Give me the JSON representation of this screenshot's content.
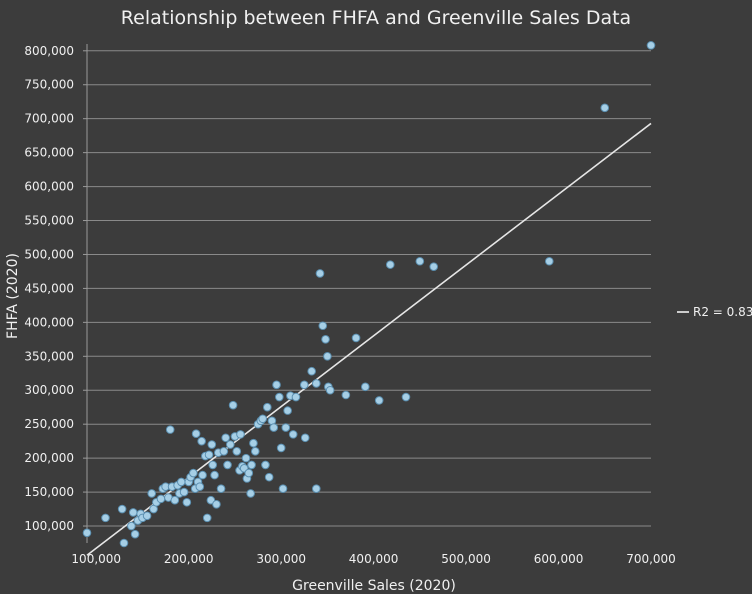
{
  "chart_data": {
    "type": "scatter",
    "title": "Relationship between FHFA and Greenville Sales Data",
    "xlabel": "Greenville Sales (2020)",
    "ylabel": "FHFA (2020)",
    "xlim": [
      90000,
      700000
    ],
    "ylim": [
      75000,
      810000
    ],
    "xticks": [
      100000,
      200000,
      300000,
      400000,
      500000,
      600000,
      700000
    ],
    "xtick_labels": [
      "100,000",
      "200,000",
      "300,000",
      "400,000",
      "500,000",
      "600,000",
      "700,000"
    ],
    "yticks": [
      100000,
      150000,
      200000,
      250000,
      300000,
      350000,
      400000,
      450000,
      500000,
      550000,
      600000,
      650000,
      700000,
      750000,
      800000
    ],
    "ytick_labels": [
      "100,000",
      "150,000",
      "200,000",
      "250,000",
      "300,000",
      "350,000",
      "400,000",
      "450,000",
      "500,000",
      "550,000",
      "600,000",
      "650,000",
      "700,000",
      "750,000",
      "800,000"
    ],
    "grid": true,
    "legend_position": "right",
    "colors": {
      "background": "#3c3c3c",
      "grid": "#8a8a8a",
      "point_fill": "#a6cfe6",
      "point_stroke": "#5b8fb0",
      "trendline": "#e6e6e6",
      "text": "#f0f0f0"
    },
    "series": [
      {
        "x": [
          90000,
          110000,
          130000,
          128000,
          138000,
          140000,
          142000,
          145000,
          148000,
          150000,
          155000,
          160000,
          162000,
          165000,
          170000,
          172000,
          175000,
          178000,
          180000,
          182000,
          185000,
          188000,
          190000,
          192000,
          195000,
          198000,
          200000,
          202000,
          205000,
          207000,
          208000,
          210000,
          212000,
          214000,
          215000,
          218000,
          220000,
          222000,
          224000,
          225000,
          226000,
          228000,
          230000,
          232000,
          235000,
          238000,
          240000,
          242000,
          245000,
          248000,
          250000,
          252000,
          255000,
          256000,
          258000,
          260000,
          262000,
          263000,
          265000,
          267000,
          268000,
          270000,
          272000,
          275000,
          278000,
          280000,
          283000,
          285000,
          287000,
          290000,
          292000,
          295000,
          298000,
          300000,
          302000,
          305000,
          307000,
          310000,
          313000,
          316000,
          325000,
          326000,
          333000,
          338000,
          338000,
          342000,
          345000,
          348000,
          350000,
          351000,
          353000,
          370000,
          381000,
          391000,
          406000,
          418000,
          435000,
          450000,
          465000,
          590000,
          650000,
          700000
        ],
        "y": [
          90000,
          112000,
          75000,
          125000,
          100000,
          120000,
          88000,
          108000,
          118000,
          112000,
          115000,
          148000,
          125000,
          135000,
          140000,
          155000,
          158000,
          142000,
          242000,
          158000,
          138000,
          160000,
          148000,
          165000,
          150000,
          135000,
          165000,
          172000,
          178000,
          155000,
          236000,
          165000,
          158000,
          225000,
          175000,
          203000,
          112000,
          205000,
          138000,
          220000,
          190000,
          175000,
          132000,
          208000,
          155000,
          210000,
          230000,
          190000,
          220000,
          278000,
          232000,
          210000,
          182000,
          235000,
          188000,
          185000,
          200000,
          170000,
          178000,
          148000,
          190000,
          222000,
          210000,
          250000,
          255000,
          258000,
          190000,
          275000,
          172000,
          255000,
          245000,
          308000,
          290000,
          215000,
          155000,
          245000,
          270000,
          292000,
          235000,
          290000,
          308000,
          230000,
          328000,
          310000,
          155000,
          472000,
          395000,
          375000,
          350000,
          305000,
          300000,
          293000,
          377000,
          305000,
          285000,
          485000,
          290000,
          490000,
          482000,
          490000,
          716000,
          808000
        ]
      }
    ],
    "trendline": {
      "label": "R2 = 0.83",
      "x": [
        90000,
        700000
      ],
      "y": [
        57000,
        693000
      ]
    }
  }
}
